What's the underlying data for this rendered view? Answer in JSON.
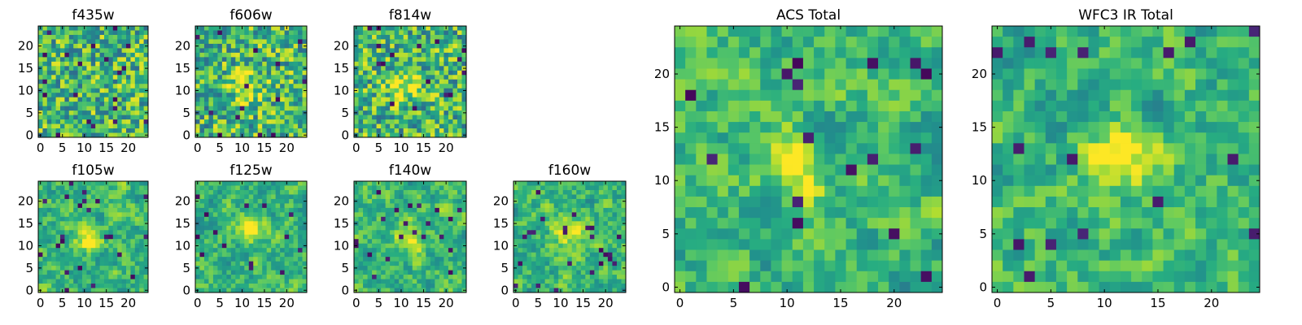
{
  "chart_data": [
    {
      "type": "heatmap",
      "title": "f435w",
      "xticks": [
        0,
        5,
        10,
        15,
        20
      ],
      "yticks": [
        0,
        5,
        10,
        15,
        20
      ],
      "xlim": [
        -0.5,
        24.5
      ],
      "ylim": [
        -0.5,
        24.5
      ],
      "grid_size": 25,
      "colormap": "viridis",
      "blob": null
    },
    {
      "type": "heatmap",
      "title": "f606w",
      "xticks": [
        0,
        5,
        10,
        15,
        20
      ],
      "yticks": [
        0,
        5,
        10,
        15,
        20
      ],
      "xlim": [
        -0.5,
        24.5
      ],
      "ylim": [
        -0.5,
        24.5
      ],
      "grid_size": 25,
      "colormap": "viridis",
      "blob": [
        11,
        11
      ]
    },
    {
      "type": "heatmap",
      "title": "f814w",
      "xticks": [
        0,
        5,
        10,
        15,
        20
      ],
      "yticks": [
        0,
        5,
        10,
        15,
        20
      ],
      "xlim": [
        -0.5,
        24.5
      ],
      "ylim": [
        -0.5,
        24.5
      ],
      "grid_size": 25,
      "colormap": "viridis",
      "blob": [
        11,
        11
      ]
    },
    {
      "type": "heatmap",
      "title": "f105w",
      "xticks": [
        0,
        5,
        10,
        15,
        20
      ],
      "yticks": [
        0,
        5,
        10,
        15,
        20
      ],
      "xlim": [
        -0.5,
        24.5
      ],
      "ylim": [
        -0.5,
        24.5
      ],
      "grid_size": 25,
      "colormap": "viridis",
      "blob": [
        11,
        12
      ]
    },
    {
      "type": "heatmap",
      "title": "f125w",
      "xticks": [
        0,
        5,
        10,
        15,
        20
      ],
      "yticks": [
        0,
        5,
        10,
        15,
        20
      ],
      "xlim": [
        -0.5,
        24.5
      ],
      "ylim": [
        -0.5,
        24.5
      ],
      "grid_size": 25,
      "colormap": "viridis",
      "blob": [
        12,
        14
      ]
    },
    {
      "type": "heatmap",
      "title": "f140w",
      "xticks": [
        0,
        5,
        10,
        15,
        20
      ],
      "yticks": [
        0,
        5,
        10,
        15,
        20
      ],
      "xlim": [
        -0.5,
        24.5
      ],
      "ylim": [
        -0.5,
        24.5
      ],
      "grid_size": 25,
      "colormap": "viridis",
      "blob": [
        12,
        12
      ]
    },
    {
      "type": "heatmap",
      "title": "f160w",
      "xticks": [
        0,
        5,
        10,
        15,
        20
      ],
      "yticks": [
        0,
        5,
        10,
        15,
        20
      ],
      "xlim": [
        -0.5,
        24.5
      ],
      "ylim": [
        -0.5,
        24.5
      ],
      "grid_size": 25,
      "colormap": "viridis",
      "blob": [
        12,
        13
      ]
    },
    {
      "type": "heatmap",
      "title": "ACS Total",
      "xticks": [
        0,
        5,
        10,
        15,
        20
      ],
      "yticks": [
        0,
        5,
        10,
        15,
        20
      ],
      "xlim": [
        -0.5,
        24.5
      ],
      "ylim": [
        -0.5,
        24.5
      ],
      "grid_size": 25,
      "colormap": "viridis",
      "blob": [
        11,
        11
      ]
    },
    {
      "type": "heatmap",
      "title": "WFC3 IR Total",
      "xticks": [
        0,
        5,
        10,
        15,
        20
      ],
      "yticks": [
        0,
        5,
        10,
        15,
        20
      ],
      "xlim": [
        -0.5,
        24.5
      ],
      "ylim": [
        -0.5,
        24.5
      ],
      "grid_size": 25,
      "colormap": "viridis",
      "blob": [
        12,
        12
      ]
    }
  ],
  "colors": {
    "dark": "#440154",
    "mid": "#21918c",
    "bright": "#fde725"
  }
}
